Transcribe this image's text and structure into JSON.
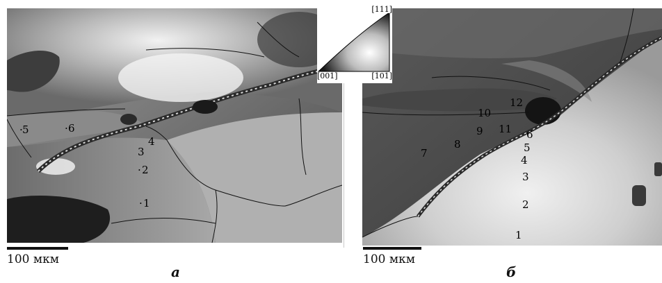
{
  "panel_a": {
    "points": [
      "1",
      "2",
      "3",
      "4",
      "5",
      "6"
    ],
    "scale_label": "100 мкм",
    "sublabel": "а"
  },
  "panel_b": {
    "points": [
      "1",
      "2",
      "3",
      "4",
      "5",
      "6",
      "7",
      "8",
      "9",
      "10",
      "11",
      "12"
    ],
    "scale_label": "100 мкм",
    "sublabel": "б"
  },
  "ipf_legend": {
    "top": "[111]",
    "left": "[001]",
    "right": "[101]"
  }
}
